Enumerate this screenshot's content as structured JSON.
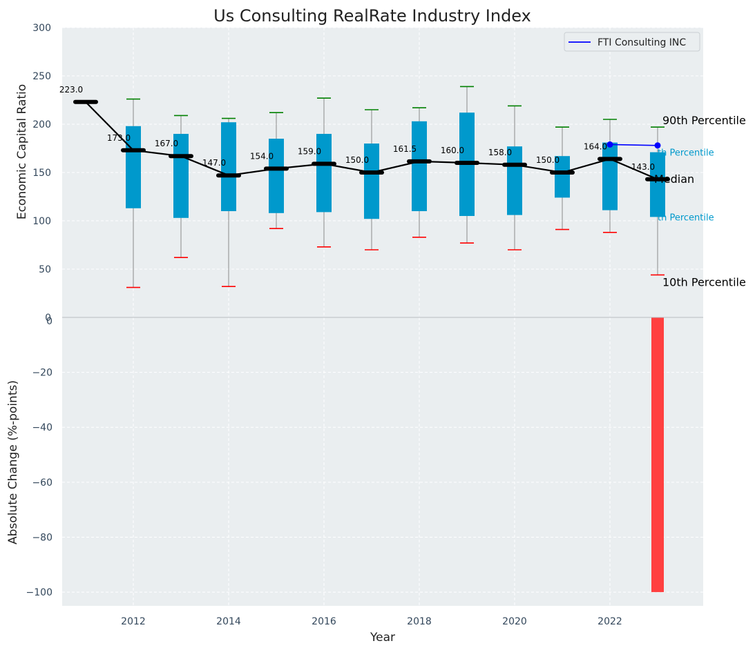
{
  "chart_data": {
    "type": "box",
    "title": "Us Consulting RealRate Industry Index",
    "xlabel": "Year",
    "x_ticks": [
      2012,
      2014,
      2016,
      2018,
      2020,
      2022
    ],
    "top_panel": {
      "ylabel": "Economic Capital Ratio",
      "ylim": [
        0,
        300
      ],
      "y_ticks": [
        0,
        50,
        100,
        150,
        200,
        250,
        300
      ],
      "grid": true,
      "boxes": [
        {
          "year": 2011,
          "p10": 223,
          "p25": 223,
          "median": 223,
          "p75": 223,
          "p90": 223,
          "label": "223.0"
        },
        {
          "year": 2012,
          "p10": 31,
          "p25": 113,
          "median": 173,
          "p75": 198,
          "p90": 226,
          "label": "173.0"
        },
        {
          "year": 2013,
          "p10": 62,
          "p25": 103,
          "median": 167,
          "p75": 190,
          "p90": 209,
          "label": "167.0"
        },
        {
          "year": 2014,
          "p10": 32,
          "p25": 110,
          "median": 147,
          "p75": 202,
          "p90": 206,
          "label": "147.0"
        },
        {
          "year": 2015,
          "p10": 92,
          "p25": 108,
          "median": 154,
          "p75": 185,
          "p90": 212,
          "label": "154.0"
        },
        {
          "year": 2016,
          "p10": 73,
          "p25": 109,
          "median": 159,
          "p75": 190,
          "p90": 227,
          "label": "159.0"
        },
        {
          "year": 2017,
          "p10": 70,
          "p25": 102,
          "median": 150,
          "p75": 180,
          "p90": 215,
          "label": "150.0"
        },
        {
          "year": 2018,
          "p10": 83,
          "p25": 110,
          "median": 161.5,
          "p75": 203,
          "p90": 217,
          "label": "161.5"
        },
        {
          "year": 2019,
          "p10": 77,
          "p25": 105,
          "median": 160,
          "p75": 212,
          "p90": 239,
          "label": "160.0"
        },
        {
          "year": 2020,
          "p10": 70,
          "p25": 106,
          "median": 158,
          "p75": 177,
          "p90": 219,
          "label": "158.0"
        },
        {
          "year": 2021,
          "p10": 91,
          "p25": 124,
          "median": 150,
          "p75": 167,
          "p90": 197,
          "label": "150.0"
        },
        {
          "year": 2022,
          "p10": 88,
          "p25": 111,
          "median": 164,
          "p75": 181,
          "p90": 205,
          "label": "164.0"
        },
        {
          "year": 2023,
          "p10": 44,
          "p25": 104,
          "median": 143,
          "p75": 171,
          "p90": 197,
          "label": "143.0"
        }
      ],
      "company_series": {
        "name": "FTI Consulting INC",
        "color": "#0000ff",
        "points": [
          {
            "year": 2022,
            "value": 179
          },
          {
            "year": 2023,
            "value": 178
          }
        ]
      },
      "annotations": {
        "p90": "90th Percentile",
        "p75": "th Percentile",
        "median": "Median",
        "p25": "th Percentile",
        "p10": "10th Percentile"
      },
      "legend_position": "top-right"
    },
    "bottom_panel": {
      "ylabel": "Absolute Change (%-points)",
      "ylim": [
        -105,
        0
      ],
      "y_ticks": [
        0,
        -20,
        -40,
        -60,
        -80,
        -100
      ],
      "grid": true,
      "bars": [
        {
          "year": 2023,
          "value": -100
        }
      ]
    },
    "colors": {
      "background": "#eaeef0",
      "box": "#0099cc",
      "p90_cap": "#008000",
      "p10_cap": "#ff0000",
      "median_line": "#000000",
      "bar": "#ff4040",
      "grid": "#ffffff",
      "tick_text": "#33475b"
    }
  }
}
